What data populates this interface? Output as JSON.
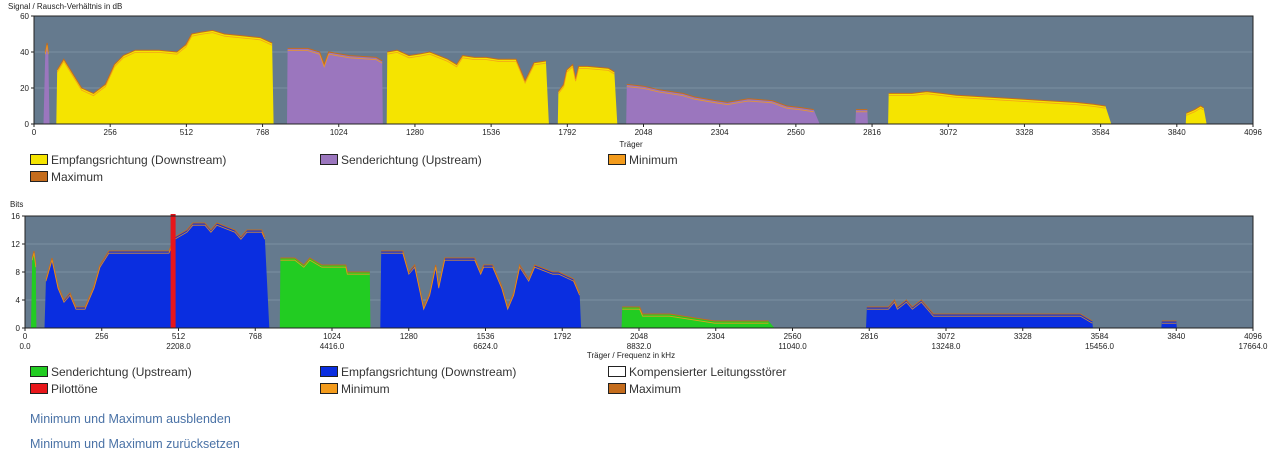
{
  "snr": {
    "title": "Signal / Rausch-Verhältnis in dB",
    "xlabel": "Träger",
    "legend": [
      {
        "label": "Empfangsrichtung (Downstream)",
        "color": "#f5e400"
      },
      {
        "label": "Senderichtung (Upstream)",
        "color": "#9b76be"
      },
      {
        "label": "Minimum",
        "color": "#f39b1c"
      },
      {
        "label": "Maximum",
        "color": "#c46c1c"
      }
    ]
  },
  "bits": {
    "title": "Bits",
    "xlabel": "Träger / Frequenz in kHz",
    "legend": [
      {
        "label": "Senderichtung (Upstream)",
        "color": "#22cc22"
      },
      {
        "label": "Empfangsrichtung (Downstream)",
        "color": "#0a2ee0"
      },
      {
        "label": "Kompensierter Leitungsstörer",
        "color": "#ffffff"
      },
      {
        "label": "Pilottöne",
        "color": "#e8161a"
      },
      {
        "label": "Minimum",
        "color": "#f39b1c"
      },
      {
        "label": "Maximum",
        "color": "#c46c1c"
      }
    ]
  },
  "links": {
    "hide": "Minimum und Maximum ausblenden",
    "reset": "Minimum und Maximum zurücksetzen"
  },
  "chart_data": [
    {
      "type": "area",
      "title": "Signal / Rausch-Verhältnis in dB",
      "xlabel": "Träger",
      "ylabel": "",
      "xlim": [
        0,
        4096
      ],
      "ylim": [
        0,
        60
      ],
      "xticks": [
        0,
        256,
        512,
        768,
        1024,
        1280,
        1536,
        1792,
        2048,
        2304,
        2560,
        2816,
        3072,
        3328,
        3584,
        3840,
        4096
      ],
      "yticks": [
        0,
        20,
        40,
        60
      ],
      "background": "#657a8e",
      "grid": true,
      "series": [
        {
          "name": "Senderichtung (Upstream)",
          "color": "#9b76be",
          "segments": [
            [
              [
                32,
                0
              ],
              [
                38,
                40
              ],
              [
                44,
                45
              ],
              [
                48,
                40
              ],
              [
                52,
                0
              ]
            ],
            [
              [
                850,
                0
              ],
              [
                852,
                42
              ],
              [
                920,
                42
              ],
              [
                960,
                40
              ],
              [
                975,
                33
              ],
              [
                990,
                40
              ],
              [
                1060,
                38
              ],
              [
                1150,
                37
              ],
              [
                1170,
                35
              ],
              [
                1172,
                0
              ]
            ],
            [
              [
                1990,
                0
              ],
              [
                1992,
                22
              ],
              [
                2048,
                21
              ],
              [
                2100,
                19
              ],
              [
                2180,
                17
              ],
              [
                2220,
                15
              ],
              [
                2290,
                13
              ],
              [
                2330,
                12
              ],
              [
                2400,
                14
              ],
              [
                2480,
                13
              ],
              [
                2530,
                10
              ],
              [
                2580,
                9
              ],
              [
                2620,
                8
              ],
              [
                2640,
                0
              ]
            ],
            [
              [
                2760,
                0
              ],
              [
                2762,
                8
              ],
              [
                2800,
                8
              ],
              [
                2802,
                0
              ]
            ]
          ]
        },
        {
          "name": "Empfangsrichtung (Downstream)",
          "color": "#f5e400",
          "segments": [
            [
              [
                75,
                0
              ],
              [
                78,
                30
              ],
              [
                100,
                36
              ],
              [
                130,
                28
              ],
              [
                160,
                20
              ],
              [
                200,
                17
              ],
              [
                240,
                22
              ],
              [
                270,
                33
              ],
              [
                300,
                38
              ],
              [
                340,
                41
              ],
              [
                420,
                41
              ],
              [
                480,
                40
              ],
              [
                510,
                44
              ],
              [
                530,
                50
              ],
              [
                560,
                51
              ],
              [
                600,
                52
              ],
              [
                640,
                50
              ],
              [
                700,
                49
              ],
              [
                760,
                48
              ],
              [
                800,
                45
              ],
              [
                805,
                0
              ]
            ],
            [
              [
                1185,
                0
              ],
              [
                1187,
                40
              ],
              [
                1220,
                41
              ],
              [
                1260,
                38
              ],
              [
                1300,
                39
              ],
              [
                1330,
                40
              ],
              [
                1390,
                36
              ],
              [
                1420,
                33
              ],
              [
                1440,
                38
              ],
              [
                1480,
                37
              ],
              [
                1520,
                37
              ],
              [
                1560,
                36
              ],
              [
                1600,
                36
              ],
              [
                1620,
                36
              ],
              [
                1650,
                24
              ],
              [
                1680,
                34
              ],
              [
                1720,
                35
              ],
              [
                1730,
                0
              ]
            ],
            [
              [
                1760,
                0
              ],
              [
                1762,
                18
              ],
              [
                1780,
                22
              ],
              [
                1790,
                30
              ],
              [
                1810,
                33
              ],
              [
                1820,
                25
              ],
              [
                1830,
                32
              ],
              [
                1860,
                32
              ],
              [
                1930,
                31
              ],
              [
                1950,
                29
              ],
              [
                1960,
                0
              ]
            ],
            [
              [
                2870,
                0
              ],
              [
                2872,
                17
              ],
              [
                2950,
                17
              ],
              [
                3000,
                18
              ],
              [
                3050,
                17
              ],
              [
                3100,
                16
              ],
              [
                3200,
                15
              ],
              [
                3300,
                14
              ],
              [
                3400,
                13
              ],
              [
                3500,
                12
              ],
              [
                3560,
                11
              ],
              [
                3600,
                10
              ],
              [
                3620,
                0
              ]
            ],
            [
              [
                3870,
                0
              ],
              [
                3872,
                6
              ],
              [
                3900,
                8
              ],
              [
                3920,
                10
              ],
              [
                3930,
                9
              ],
              [
                3940,
                0
              ]
            ]
          ]
        }
      ]
    },
    {
      "type": "area",
      "title": "Bits",
      "xlabel": "Träger / Frequenz in kHz",
      "ylabel": "",
      "xlim": [
        0,
        4096
      ],
      "ylim": [
        0,
        16
      ],
      "xticks": [
        0,
        256,
        512,
        768,
        1024,
        1280,
        1536,
        1792,
        2048,
        2304,
        2560,
        2816,
        3072,
        3328,
        3584,
        3840,
        4096
      ],
      "xticks_khz": [
        "0.0",
        "",
        "2208.0",
        "",
        "4416.0",
        "",
        "6624.0",
        "",
        "8832.0",
        "",
        "11040.0",
        "",
        "13248.0",
        "",
        "15456.0",
        "",
        "17664.0"
      ],
      "yticks": [
        0,
        4,
        8,
        12,
        16
      ],
      "background": "#657a8e",
      "grid": true,
      "series": [
        {
          "name": "Senderichtung (Upstream)",
          "color": "#22cc22",
          "segments": [
            [
              [
                20,
                0
              ],
              [
                24,
                10
              ],
              [
                30,
                11
              ],
              [
                36,
                9
              ],
              [
                38,
                0
              ]
            ],
            [
              [
                850,
                0
              ],
              [
                852,
                10
              ],
              [
                900,
                10
              ],
              [
                930,
                9
              ],
              [
                950,
                10
              ],
              [
                990,
                9
              ],
              [
                1070,
                9
              ],
              [
                1075,
                8
              ],
              [
                1150,
                8
              ],
              [
                1152,
                0
              ]
            ],
            [
              [
                1990,
                0
              ],
              [
                1992,
                3
              ],
              [
                2050,
                3
              ],
              [
                2060,
                2
              ],
              [
                2150,
                2
              ],
              [
                2300,
                1
              ],
              [
                2480,
                1
              ],
              [
                2500,
                0
              ]
            ]
          ]
        },
        {
          "name": "Empfangsrichtung (Downstream)",
          "color": "#0a2ee0",
          "segments": [
            [
              [
                65,
                0
              ],
              [
                70,
                7
              ],
              [
                90,
                10
              ],
              [
                110,
                6
              ],
              [
                130,
                4
              ],
              [
                150,
                5
              ],
              [
                170,
                3
              ],
              [
                200,
                3
              ],
              [
                230,
                6
              ],
              [
                250,
                9
              ],
              [
                280,
                11
              ],
              [
                340,
                11
              ],
              [
                400,
                11
              ],
              [
                420,
                11
              ],
              [
                480,
                11
              ],
              [
                500,
                13
              ],
              [
                540,
                14
              ],
              [
                560,
                15
              ],
              [
                600,
                15
              ],
              [
                620,
                14
              ],
              [
                640,
                15
              ],
              [
                700,
                14
              ],
              [
                720,
                13
              ],
              [
                740,
                14
              ],
              [
                790,
                14
              ],
              [
                800,
                13
              ],
              [
                815,
                0
              ]
            ],
            [
              [
                1185,
                0
              ],
              [
                1188,
                11
              ],
              [
                1260,
                11
              ],
              [
                1280,
                8
              ],
              [
                1300,
                9
              ],
              [
                1330,
                3
              ],
              [
                1350,
                5
              ],
              [
                1370,
                9
              ],
              [
                1380,
                6
              ],
              [
                1400,
                10
              ],
              [
                1460,
                10
              ],
              [
                1500,
                10
              ],
              [
                1520,
                8
              ],
              [
                1530,
                9
              ],
              [
                1560,
                9
              ],
              [
                1590,
                6
              ],
              [
                1610,
                3
              ],
              [
                1630,
                5
              ],
              [
                1650,
                9
              ],
              [
                1680,
                7
              ],
              [
                1700,
                9
              ],
              [
                1760,
                8
              ],
              [
                1780,
                8
              ],
              [
                1830,
                7
              ],
              [
                1850,
                5
              ],
              [
                1855,
                0
              ]
            ],
            [
              [
                2805,
                0
              ],
              [
                2808,
                3
              ],
              [
                2880,
                3
              ],
              [
                2900,
                4
              ],
              [
                2910,
                3
              ],
              [
                2940,
                4
              ],
              [
                2960,
                3
              ],
              [
                2990,
                4
              ],
              [
                3010,
                3
              ],
              [
                3030,
                2
              ],
              [
                3200,
                2
              ],
              [
                3400,
                2
              ],
              [
                3520,
                2
              ],
              [
                3560,
                1
              ],
              [
                3562,
                0
              ]
            ],
            [
              [
                3790,
                0
              ],
              [
                3792,
                1
              ],
              [
                3840,
                1
              ],
              [
                3842,
                0
              ]
            ]
          ]
        },
        {
          "name": "Pilottöne",
          "color": "#e8161a",
          "markers": [
            494
          ]
        }
      ]
    }
  ]
}
